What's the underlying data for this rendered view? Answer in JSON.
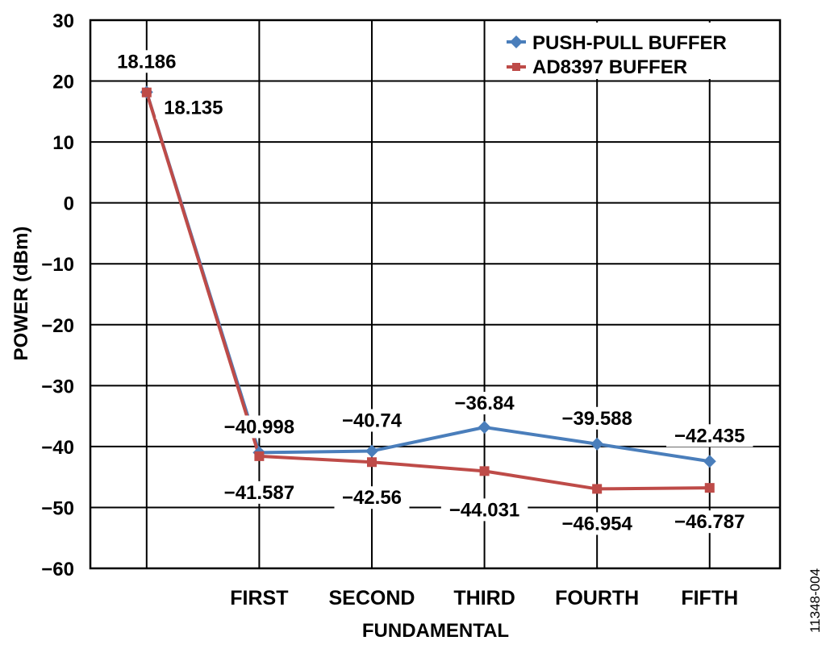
{
  "chart_data": {
    "type": "line",
    "title": "",
    "xlabel": "FUNDAMENTAL",
    "ylabel": "POWER (dBm)",
    "ylim": [
      -60,
      30
    ],
    "yticks": [
      "30",
      "20",
      "10",
      "0",
      "−10",
      "−20",
      "−30",
      "−40",
      "−50",
      "−60"
    ],
    "categories": [
      "",
      "FIRST",
      "SECOND",
      "THIRD",
      "FOURTH",
      "FIFTH"
    ],
    "grid": true,
    "legend_position": "top-right",
    "series": [
      {
        "name": "PUSH-PULL BUFFER",
        "color": "#4a7ebb",
        "marker": "diamond",
        "values": [
          18.186,
          -40.998,
          -40.74,
          -36.84,
          -39.588,
          -42.435
        ],
        "labels": [
          "18.186",
          "−40.998",
          "−40.74",
          "−36.84",
          "−39.588",
          "−42.435"
        ]
      },
      {
        "name": "AD8397 BUFFER",
        "color": "#be4b48",
        "marker": "square",
        "values": [
          18.135,
          -41.587,
          -42.56,
          -44.031,
          -46.954,
          -46.787
        ],
        "labels": [
          "18.135",
          "−41.587",
          "−42.56",
          "−44.031",
          "−46.954",
          "−46.787"
        ]
      }
    ],
    "figure_id": "11348-004"
  }
}
